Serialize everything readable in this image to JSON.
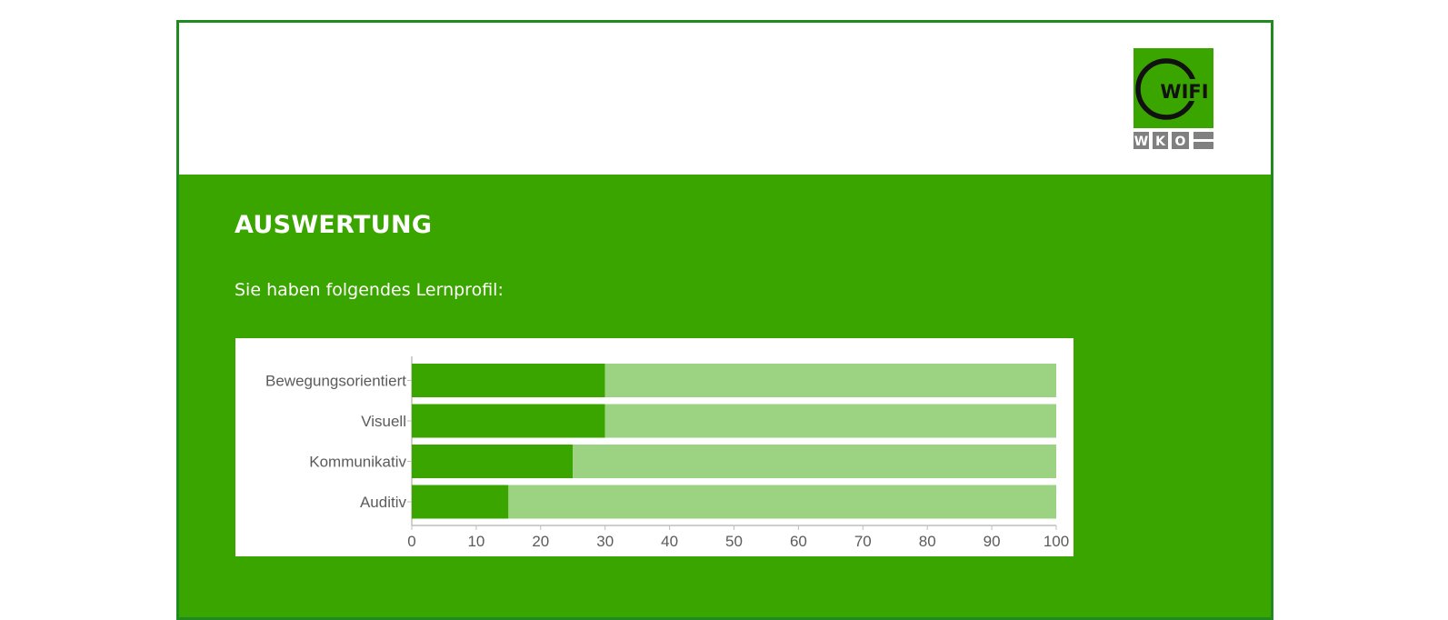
{
  "header": {
    "logo_top_text": "WIFI",
    "logo_bottom_text": "WKO"
  },
  "main": {
    "title": "AUSWERTUNG",
    "subtitle": "Sie haben folgendes Lernprofil:"
  },
  "colors": {
    "frame_border": "#1f8a1f",
    "content_background": "#3ba500",
    "bar_value": "#3ba500",
    "bar_remainder": "#9bd383",
    "axis": "#bdbdbd",
    "text_gray": "#5b5b5b"
  },
  "chart_data": {
    "type": "bar",
    "orientation": "horizontal",
    "stacked": true,
    "categories": [
      "Bewegungsorientiert",
      "Visuell",
      "Kommunikativ",
      "Auditiv"
    ],
    "series": [
      {
        "values": [
          30,
          30,
          25,
          15
        ]
      },
      {
        "values": [
          70,
          70,
          75,
          85
        ]
      }
    ],
    "xlim": [
      0,
      100
    ],
    "xticks": [
      "0",
      "10",
      "20",
      "30",
      "40",
      "50",
      "60",
      "70",
      "80",
      "90",
      "100"
    ],
    "title": "",
    "xlabel": "",
    "ylabel": "",
    "grid": false,
    "legend": "none"
  }
}
